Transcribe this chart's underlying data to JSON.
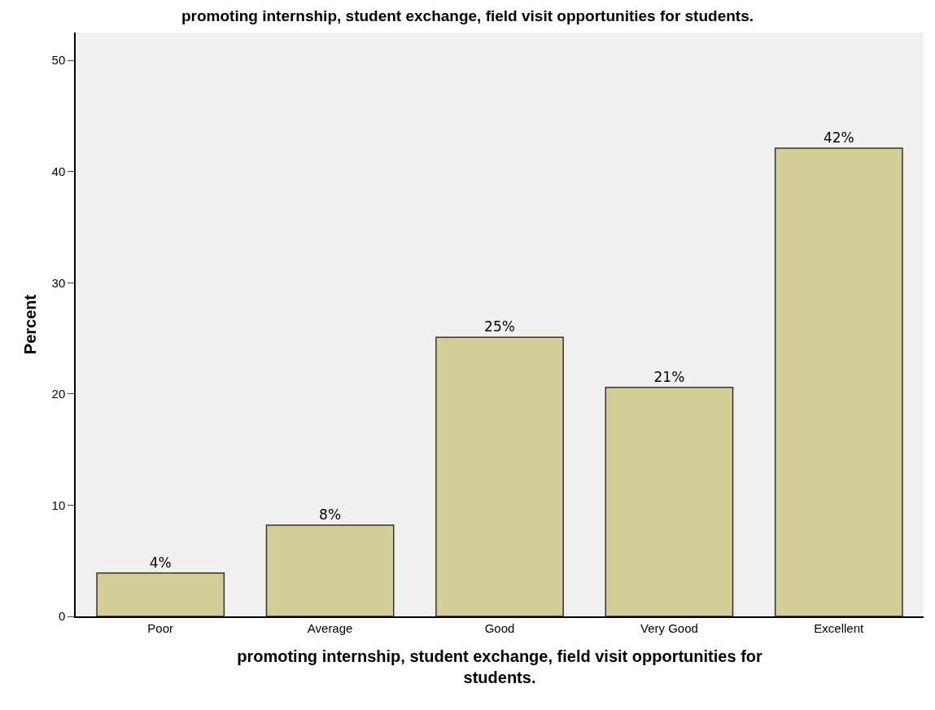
{
  "chart_data": {
    "type": "bar",
    "title": "promoting internship, student exchange, field visit opportunities for students.",
    "xlabel": "promoting internship, student exchange, field visit opportunities for students.",
    "ylabel": "Percent",
    "categories": [
      "Poor",
      "Average",
      "Good",
      "Very Good",
      "Excellent"
    ],
    "values": [
      3.9,
      8.2,
      25.1,
      20.6,
      42.1
    ],
    "value_labels": [
      "4%",
      "8%",
      "25%",
      "21%",
      "42%"
    ],
    "color": "#d3ce97",
    "ylim": [
      0,
      52.5
    ],
    "yticks": [
      0,
      10,
      20,
      30,
      40,
      50
    ],
    "grid": false
  }
}
